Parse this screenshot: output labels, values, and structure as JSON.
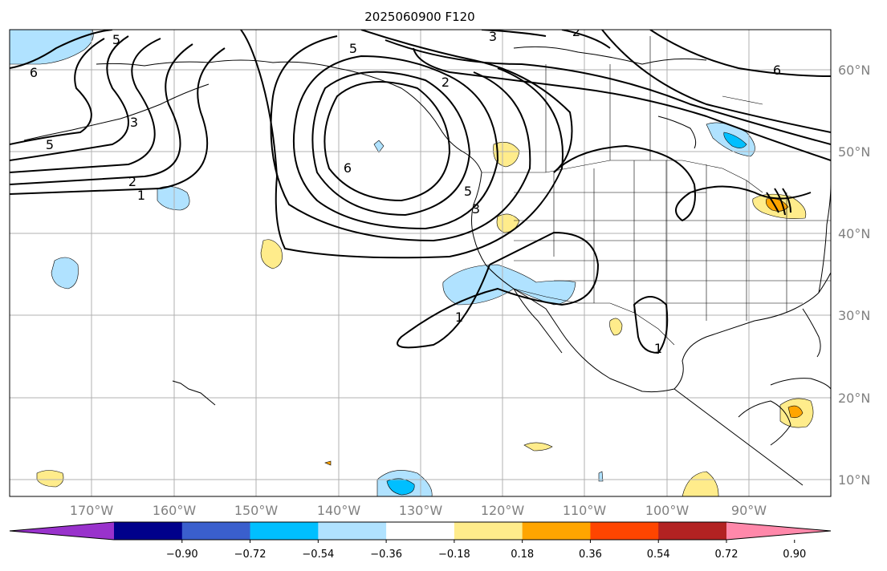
{
  "title": "2025060900 F120",
  "map": {
    "projection": "PlateCarree",
    "lon_range": [
      -180,
      -82
    ],
    "lat_range": [
      8,
      65
    ],
    "gridlines": true,
    "lon_labels": [
      "170°W",
      "160°W",
      "150°W",
      "140°W",
      "130°W",
      "120°W",
      "110°W",
      "100°W",
      "90°W"
    ],
    "lat_labels": [
      "60°N",
      "50°N",
      "40°N",
      "30°N",
      "20°N",
      "10°N"
    ],
    "contour_labels": [
      "6",
      "5",
      "3",
      "2",
      "2",
      "5",
      "6",
      "2",
      "1",
      "5",
      "6",
      "3",
      "5",
      "3",
      "1",
      "1",
      "6"
    ]
  },
  "colorbar": {
    "tick_labels": [
      "−0.90",
      "−0.72",
      "−0.54",
      "−0.36",
      "−0.18",
      "0.18",
      "0.36",
      "0.54",
      "0.72",
      "0.90"
    ],
    "colors": [
      "#9932CC",
      "#00008B",
      "#3A5FCD",
      "#00BFFF",
      "#B0E2FF",
      "#FFFFFF",
      "#FFEC8B",
      "#FFA500",
      "#FF4500",
      "#B22222",
      "#FF88AA"
    ],
    "extend": "both"
  }
}
